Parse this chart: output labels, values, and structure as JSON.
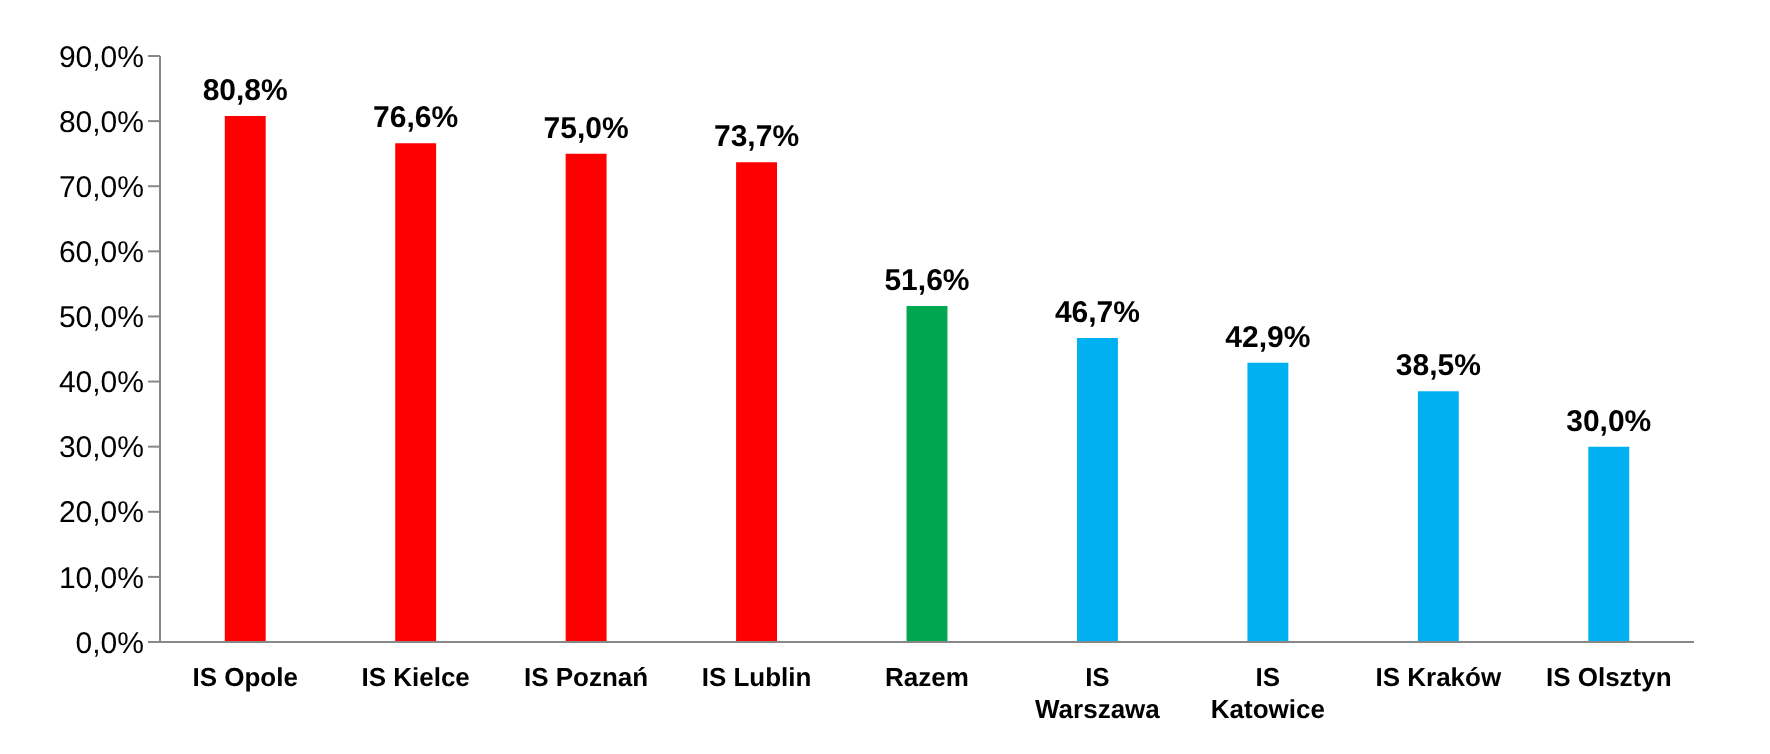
{
  "chart_data": {
    "type": "bar",
    "categories": [
      "IS Opole",
      "IS Kielce",
      "IS Poznań",
      "IS Lublin",
      "Razem",
      "IS Warszawa",
      "IS Katowice",
      "IS Kraków",
      "IS Olsztyn"
    ],
    "values": [
      80.8,
      76.6,
      75.0,
      73.7,
      51.6,
      46.7,
      42.9,
      38.5,
      30.0
    ],
    "colors": [
      "#ff0000",
      "#ff0000",
      "#ff0000",
      "#ff0000",
      "#00a650",
      "#00b0f0",
      "#00b0f0",
      "#00b0f0",
      "#00b0f0"
    ],
    "value_labels": [
      "80,8%",
      "76,6%",
      "75,0%",
      "73,7%",
      "51,6%",
      "46,7%",
      "42,9%",
      "38,5%",
      "30,0%"
    ],
    "ylim": [
      0,
      90
    ],
    "yticks": [
      {
        "value": 0,
        "label": "0,0%"
      },
      {
        "value": 10,
        "label": "10,0%"
      },
      {
        "value": 20,
        "label": "20,0%"
      },
      {
        "value": 30,
        "label": "30,0%"
      },
      {
        "value": 40,
        "label": "40,0%"
      },
      {
        "value": 50,
        "label": "50,0%"
      },
      {
        "value": 60,
        "label": "60,0%"
      },
      {
        "value": 70,
        "label": "70,0%"
      },
      {
        "value": 80,
        "label": "80,0%"
      },
      {
        "value": 90,
        "label": "90,0%"
      }
    ],
    "grid": false,
    "legend": false
  }
}
